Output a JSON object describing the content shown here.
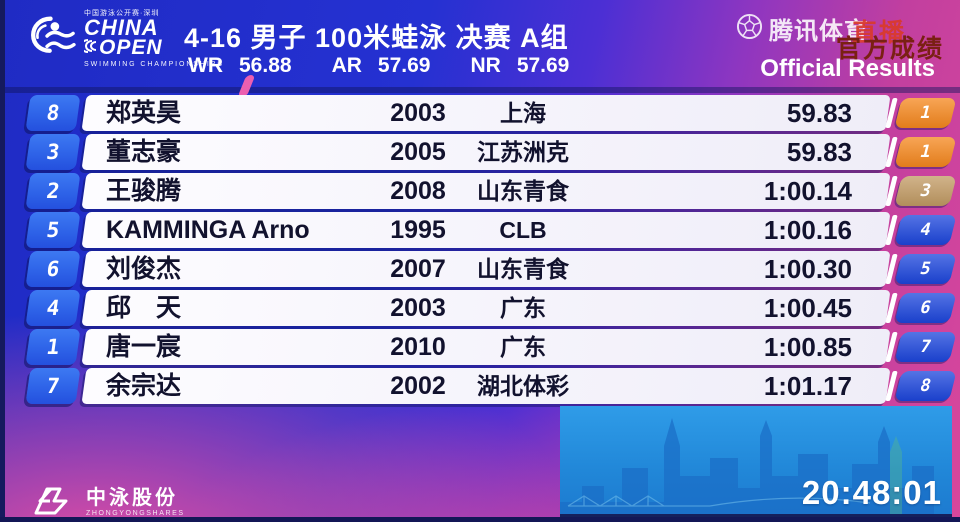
{
  "header": {
    "logo": {
      "top_cn": "中国游泳公开赛·深圳",
      "name_line1": "CHINA",
      "name_line2": "OPEN",
      "tagline": "SWIMMING CHAMPIONSHIPS"
    },
    "title": "4-16 男子 100米蛙泳 决赛 A组",
    "records": [
      {
        "label": "WR",
        "value": "56.88"
      },
      {
        "label": "AR",
        "value": "57.69"
      },
      {
        "label": "NR",
        "value": "57.69"
      }
    ]
  },
  "watermark": {
    "brand": "腾讯体育",
    "live": "直播"
  },
  "official": {
    "cn": "官方成绩",
    "en": "Official Results"
  },
  "results": {
    "rows": [
      {
        "lane": "8",
        "name": "郑英昊",
        "year": "2003",
        "team": "上海",
        "time": "59.83",
        "rank": "1",
        "medal": "gold"
      },
      {
        "lane": "3",
        "name": "董志豪",
        "year": "2005",
        "team": "江苏洲克",
        "time": "59.83",
        "rank": "1",
        "medal": "gold"
      },
      {
        "lane": "2",
        "name": "王骏腾",
        "year": "2008",
        "team": "山东青食",
        "time": "1:00.14",
        "rank": "3",
        "medal": "bronze"
      },
      {
        "lane": "5",
        "name": "KAMMINGA Arno",
        "year": "1995",
        "team": "CLB",
        "time": "1:00.16",
        "rank": "4",
        "medal": "none"
      },
      {
        "lane": "6",
        "name": "刘俊杰",
        "year": "2007",
        "team": "山东青食",
        "time": "1:00.30",
        "rank": "5",
        "medal": "none"
      },
      {
        "lane": "4",
        "name": "邱　天",
        "year": "2003",
        "team": "广东",
        "time": "1:00.45",
        "rank": "6",
        "medal": "none"
      },
      {
        "lane": "1",
        "name": "唐一宸",
        "year": "2010",
        "team": "广东",
        "time": "1:00.85",
        "rank": "7",
        "medal": "none"
      },
      {
        "lane": "7",
        "name": "余宗达",
        "year": "2002",
        "team": "湖北体彩",
        "time": "1:01.17",
        "rank": "8",
        "medal": "none"
      }
    ]
  },
  "footer": {
    "sponsor_cn": "中泳股份",
    "sponsor_en": "ZHONGYONGSHARES",
    "clock": "20:48:01"
  },
  "colors": {
    "rank_gold": "#F5871D",
    "rank_bronze": "#C19A63",
    "rank_default": "#1C45DC",
    "lane_blue": "#2E63E8",
    "accent_pink": "#EC5FB0",
    "live_red": "#D93A2E",
    "official_cn_maroon": "#7A2013"
  }
}
